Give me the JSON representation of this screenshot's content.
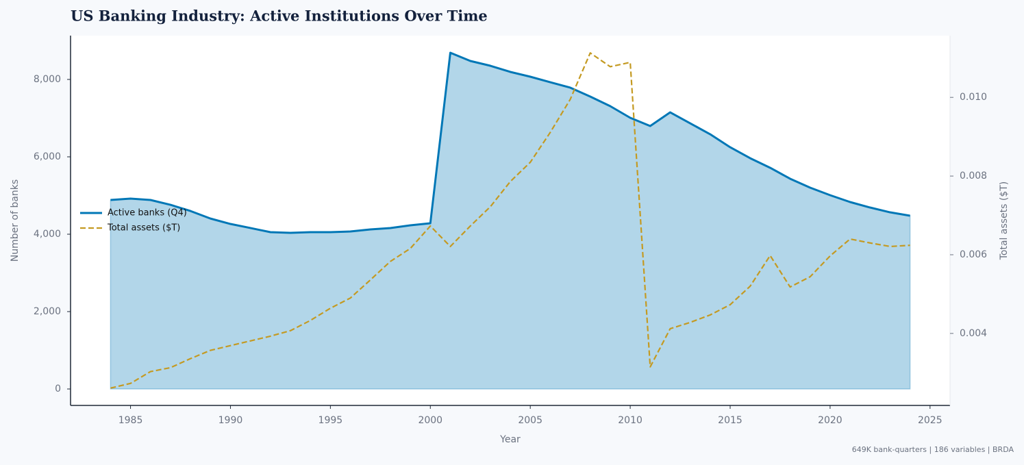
{
  "chart_data": {
    "type": "line",
    "title": "US Banking Industry: Active Institutions Over Time",
    "xlabel": "Year",
    "ylabel": "Number of banks",
    "y2label": "Total assets ($T)",
    "note": "649K bank-quarters | 186 variables | BRDA",
    "x": [
      1984,
      1985,
      1986,
      1987,
      1988,
      1989,
      1990,
      1991,
      1992,
      1993,
      1994,
      1995,
      1996,
      1997,
      1998,
      1999,
      2000,
      2001,
      2002,
      2003,
      2004,
      2005,
      2006,
      2007,
      2008,
      2009,
      2010,
      2011,
      2012,
      2013,
      2014,
      2015,
      2016,
      2017,
      2018,
      2019,
      2020,
      2021,
      2022,
      2023,
      2024
    ],
    "series": [
      {
        "name": "Active banks (Q4)",
        "color": "#0077b6",
        "area": true,
        "dash": false,
        "values": [
          4885,
          4920,
          4885,
          4760,
          4600,
          4405,
          4265,
          4160,
          4053,
          4035,
          4053,
          4053,
          4070,
          4124,
          4160,
          4230,
          4283,
          8690,
          8478,
          8354,
          8195,
          8071,
          7929,
          7788,
          7558,
          7310,
          7009,
          6796,
          7150,
          6867,
          6584,
          6248,
          5965,
          5717,
          5434,
          5204,
          5009,
          4832,
          4690,
          4566,
          4478
        ]
      },
      {
        "name": "Total assets ($T)",
        "color": "#c49a22",
        "axis": "y2",
        "dash": true,
        "values": [
          0.00261,
          0.00273,
          0.00303,
          0.00313,
          0.00336,
          0.00357,
          0.00369,
          0.00381,
          0.00393,
          0.00407,
          0.00433,
          0.00464,
          0.0049,
          0.00536,
          0.00583,
          0.00616,
          0.00673,
          0.00621,
          0.00673,
          0.00722,
          0.00786,
          0.00835,
          0.00911,
          0.00995,
          0.01113,
          0.01078,
          0.01089,
          0.00315,
          0.00412,
          0.00428,
          0.00447,
          0.00473,
          0.0052,
          0.00598,
          0.00518,
          0.00544,
          0.00597,
          0.0064,
          0.0063,
          0.00621,
          0.00624
        ]
      }
    ],
    "xlim": [
      1982,
      2026
    ],
    "xticks": [
      1985,
      1990,
      1995,
      2000,
      2005,
      2010,
      2015,
      2020,
      2025
    ],
    "ylim": [
      -425,
      9133
    ],
    "yticks": [
      0,
      {
        "value": 2000,
        "label": "2,000"
      },
      {
        "value": 4000,
        "label": "4,000"
      },
      {
        "value": 6000,
        "label": "6,000"
      },
      {
        "value": 8000,
        "label": "8,000"
      }
    ],
    "y2lim": [
      0.00217,
      0.01157
    ],
    "y2ticks": [
      0.004,
      0.006,
      0.008,
      {
        "value": 0.01,
        "label": "0.010"
      }
    ],
    "grid": false,
    "legend": "upper left"
  }
}
